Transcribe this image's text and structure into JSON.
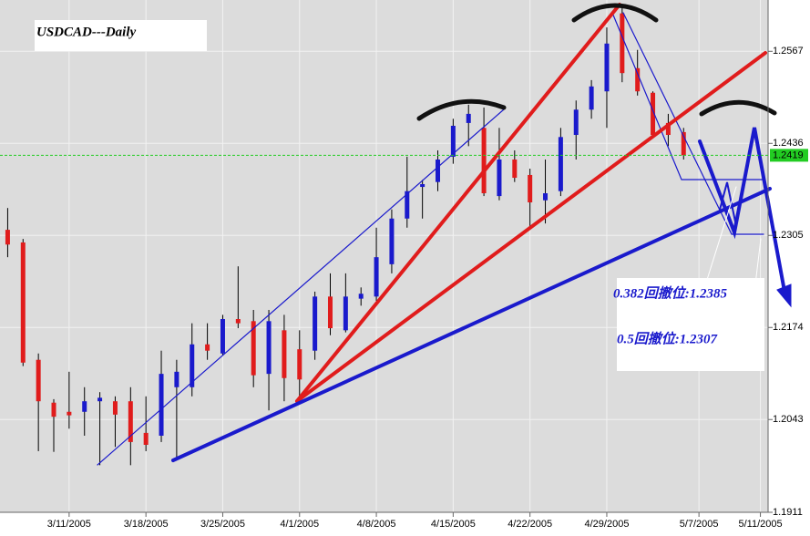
{
  "chart_data": {
    "type": "candlestick",
    "title": "USDCAD---Daily",
    "categories": [
      null,
      null,
      null,
      null,
      "3/11/2005",
      null,
      null,
      null,
      null,
      "3/18/2005",
      null,
      null,
      null,
      null,
      "3/25/2005",
      null,
      null,
      null,
      null,
      "4/1/2005",
      null,
      null,
      null,
      null,
      "4/8/2005",
      null,
      null,
      null,
      null,
      "4/15/2005",
      null,
      null,
      null,
      null,
      "4/22/2005",
      null,
      null,
      null,
      null,
      "4/29/2005",
      null,
      null,
      null,
      null,
      null,
      "5/7/2005",
      null,
      null,
      null,
      "5/11/2005"
    ],
    "open": [
      1.2313,
      1.2295,
      1.2128,
      1.2067,
      1.2054,
      1.2054,
      1.2069,
      1.2069,
      1.2069,
      1.2024,
      1.202,
      1.2089,
      1.2089,
      1.215,
      1.2137,
      1.2186,
      1.2183,
      1.2108,
      1.217,
      1.2143,
      1.2141,
      1.2218,
      1.217,
      1.2215,
      1.2218,
      1.2264,
      1.2329,
      1.2374,
      1.2381,
      1.2417,
      1.2465,
      1.2458,
      1.2361,
      1.2413,
      1.2391,
      1.2355,
      1.2368,
      1.2448,
      1.2484,
      1.251,
      1.2621,
      1.2543,
      1.2508,
      1.2465,
      1.2452,
      null,
      null,
      null,
      null,
      null
    ],
    "high": [
      1.2344,
      1.23,
      1.2137,
      1.2072,
      1.2111,
      1.2089,
      1.2082,
      1.2076,
      1.2089,
      1.2076,
      1.2141,
      1.2128,
      1.218,
      1.218,
      1.2192,
      1.2261,
      1.2199,
      1.2199,
      1.2192,
      1.217,
      1.2225,
      1.2251,
      1.2251,
      1.2231,
      1.2316,
      1.2342,
      1.2417,
      1.2384,
      1.2426,
      1.2471,
      1.2491,
      1.2487,
      1.2458,
      1.2426,
      1.24,
      1.2413,
      1.2458,
      1.2497,
      1.2526,
      1.2601,
      1.2633,
      1.2569,
      1.251,
      1.2478,
      1.2458,
      null,
      null,
      null,
      null,
      null
    ],
    "low": [
      1.2274,
      1.2119,
      1.1998,
      1.1997,
      1.203,
      1.202,
      1.1978,
      1.2004,
      1.1978,
      1.1998,
      1.2011,
      1.1985,
      1.2076,
      1.2128,
      1.2134,
      1.2173,
      1.2089,
      1.2056,
      1.2069,
      1.2069,
      1.2128,
      1.2163,
      1.2167,
      1.2205,
      1.2212,
      1.2251,
      1.2316,
      1.2329,
      1.2368,
      1.2407,
      1.2432,
      1.2361,
      1.2355,
      1.2381,
      1.2316,
      1.2322,
      1.2361,
      1.2413,
      1.2471,
      1.2458,
      1.2523,
      1.2504,
      1.2443,
      1.2432,
      1.2413,
      null,
      null,
      null,
      null,
      null
    ],
    "close": [
      1.2292,
      1.2124,
      1.2069,
      1.2047,
      1.2049,
      1.2069,
      1.2074,
      1.205,
      1.2011,
      1.2007,
      1.2108,
      1.2111,
      1.215,
      1.2141,
      1.2186,
      1.218,
      1.2106,
      1.2183,
      1.2102,
      1.21,
      1.2218,
      1.2173,
      1.2218,
      1.2222,
      1.2274,
      1.2329,
      1.2368,
      1.2378,
      1.2413,
      1.2461,
      1.2478,
      1.2365,
      1.2413,
      1.2387,
      1.2352,
      1.2365,
      1.2445,
      1.2484,
      1.2517,
      1.2578,
      1.2536,
      1.251,
      1.2448,
      1.2448,
      1.2419,
      null,
      null,
      null,
      null,
      null
    ],
    "up_color": "#1a1acc",
    "down_color": "#e01c1c",
    "ylim": [
      1.1911,
      1.264
    ],
    "yticks": [
      1.1911,
      1.2043,
      1.2174,
      1.2305,
      1.2436,
      1.2567
    ],
    "last_price": 1.2419,
    "last_price_color": "#22cc22",
    "grid": true,
    "annotations": [
      "0.382回撤位:1.2385",
      "0.5回撤位:1.2307"
    ]
  }
}
